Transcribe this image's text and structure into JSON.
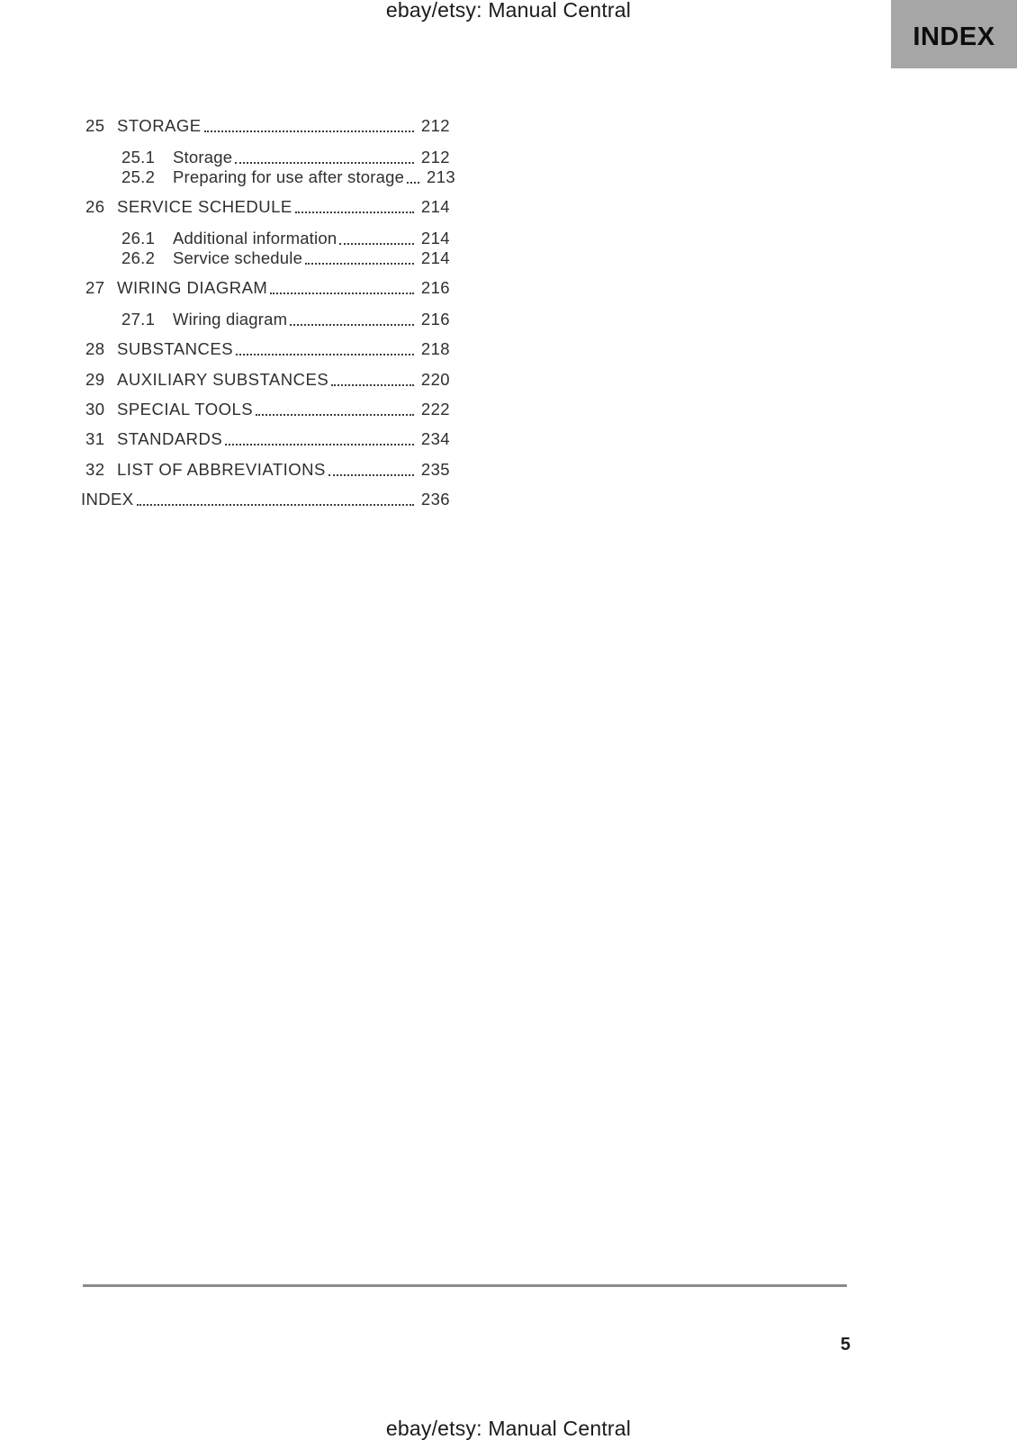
{
  "page": {
    "header_title": "ebay/etsy: Manual Central",
    "footer_title": "ebay/etsy: Manual Central",
    "page_number": "5",
    "index_tab_label": "INDEX",
    "colors": {
      "index_tab_bg": "#a6a6a6",
      "text": "#2f2f2f",
      "rule": "#8a8a8a"
    }
  },
  "toc": {
    "rows": [
      {
        "num": "25",
        "title": "STORAGE",
        "page": "212",
        "level": 1
      },
      {
        "num": "25.1",
        "title": "Storage",
        "page": "212",
        "level": 2
      },
      {
        "num": "25.2",
        "title": "Preparing for use after storage",
        "page": "213",
        "level": 2
      },
      {
        "num": "26",
        "title": "SERVICE SCHEDULE",
        "page": "214",
        "level": 1
      },
      {
        "num": "26.1",
        "title": "Additional information",
        "page": "214",
        "level": 2
      },
      {
        "num": "26.2",
        "title": "Service schedule",
        "page": "214",
        "level": 2
      },
      {
        "num": "27",
        "title": "WIRING DIAGRAM",
        "page": "216",
        "level": 1
      },
      {
        "num": "27.1",
        "title": "Wiring diagram",
        "page": "216",
        "level": 2
      },
      {
        "num": "28",
        "title": "SUBSTANCES",
        "page": "218",
        "level": 1
      },
      {
        "num": "29",
        "title": "AUXILIARY SUBSTANCES",
        "page": "220",
        "level": 1
      },
      {
        "num": "30",
        "title": "SPECIAL TOOLS",
        "page": "222",
        "level": 1
      },
      {
        "num": "31",
        "title": "STANDARDS",
        "page": "234",
        "level": 1
      },
      {
        "num": "32",
        "title": "LIST OF ABBREVIATIONS",
        "page": "235",
        "level": 1
      },
      {
        "num": "",
        "title": "INDEX",
        "page": "236",
        "level": 0
      }
    ]
  }
}
